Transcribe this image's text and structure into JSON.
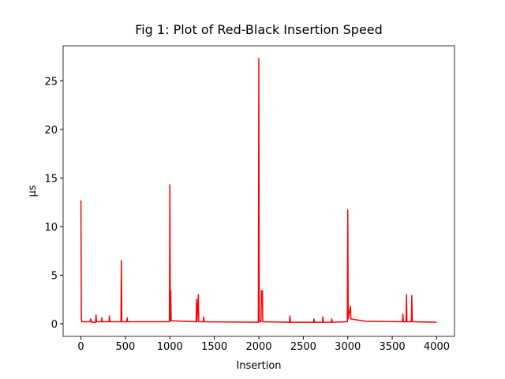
{
  "chart_data": {
    "type": "line",
    "title": "Fig 1: Plot of Red-Black Insertion Speed",
    "xlabel": "Insertion",
    "ylabel": "µs",
    "xlim": [
      -200,
      4200
    ],
    "ylim": [
      -1.3,
      28.6
    ],
    "xticks": [
      0,
      500,
      1000,
      1500,
      2000,
      2500,
      3000,
      3500,
      4000
    ],
    "yticks": [
      0,
      5,
      10,
      15,
      20,
      25
    ],
    "grid": false,
    "series": [
      {
        "color": "red",
        "x": [
          0,
          5,
          10,
          100,
          110,
          120,
          165,
          170,
          175,
          230,
          235,
          240,
          315,
          320,
          325,
          450,
          455,
          460,
          515,
          520,
          525,
          995,
          1000,
          1005,
          1010,
          1015,
          1295,
          1300,
          1305,
          1320,
          1325,
          1375,
          1380,
          1385,
          1995,
          2000,
          2005,
          2025,
          2030,
          2040,
          2045,
          2345,
          2350,
          2355,
          2615,
          2620,
          2625,
          2715,
          2720,
          2725,
          2815,
          2820,
          2825,
          2995,
          3000,
          3005,
          3030,
          3035,
          3100,
          3200,
          3615,
          3620,
          3625,
          3655,
          3660,
          3665,
          3715,
          3720,
          3725,
          3999
        ],
        "values": [
          12.7,
          0.5,
          0.2,
          0.2,
          0.5,
          0.15,
          0.15,
          0.9,
          0.2,
          0.2,
          0.6,
          0.2,
          0.2,
          0.8,
          0.2,
          0.2,
          6.5,
          0.2,
          0.2,
          0.6,
          0.2,
          0.2,
          14.3,
          0.3,
          3.4,
          0.3,
          0.2,
          2.5,
          0.2,
          3.0,
          0.2,
          0.2,
          0.7,
          0.2,
          0.15,
          27.3,
          0.2,
          0.2,
          3.4,
          3.4,
          0.2,
          0.15,
          0.8,
          0.15,
          0.15,
          0.5,
          0.15,
          0.15,
          0.7,
          0.15,
          0.15,
          0.5,
          0.15,
          0.2,
          11.7,
          0.5,
          1.8,
          0.5,
          0.4,
          0.25,
          0.2,
          1.0,
          0.2,
          0.2,
          3.0,
          0.2,
          0.2,
          2.9,
          0.2,
          0.15
        ]
      }
    ]
  }
}
